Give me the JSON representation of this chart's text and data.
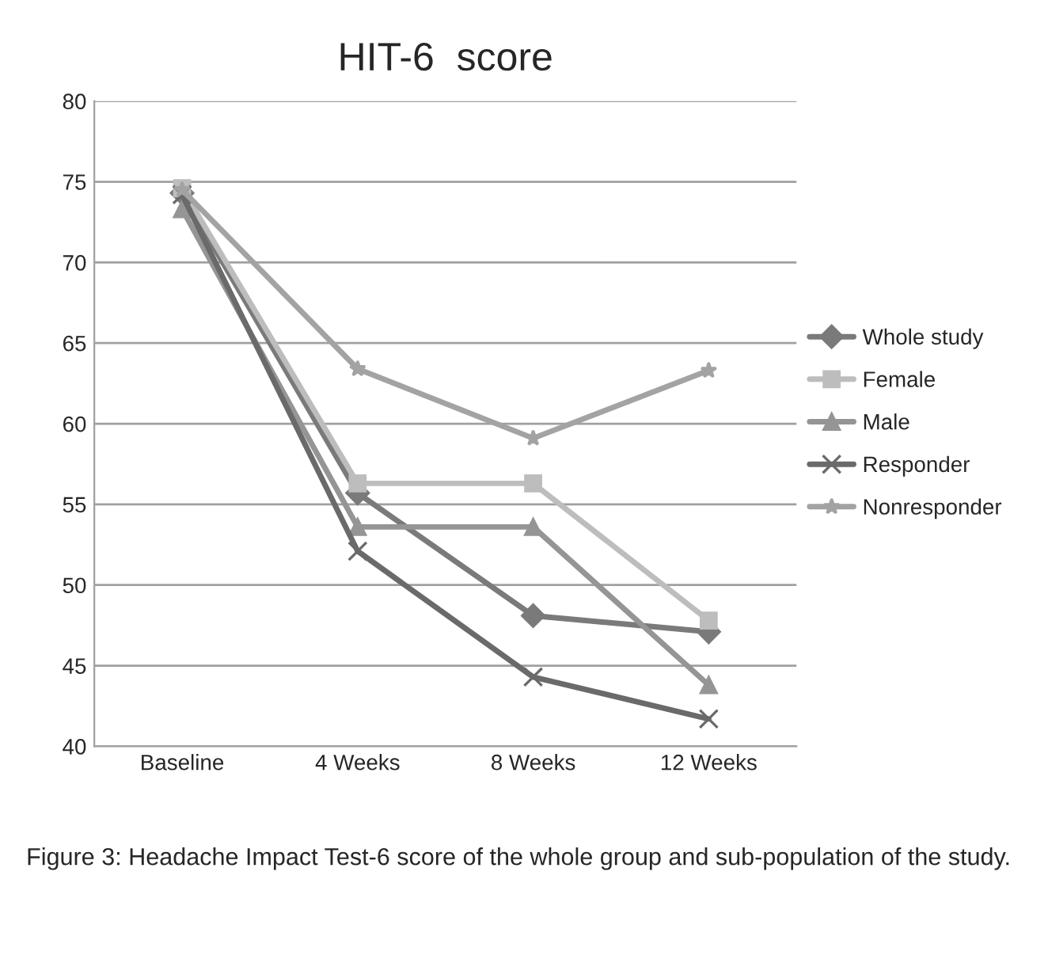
{
  "chart_data": {
    "type": "line",
    "title": "HIT-6  score",
    "categories": [
      "Baseline",
      "4 Weeks",
      "8 Weeks",
      "12 Weeks"
    ],
    "series": [
      {
        "name": "Whole study",
        "color": "#7a7a7a",
        "marker": "diamond",
        "values": [
          74.3,
          55.7,
          48.1,
          47.1
        ]
      },
      {
        "name": "Female",
        "color": "#bdbdbd",
        "marker": "square",
        "values": [
          74.6,
          56.3,
          56.3,
          47.8
        ]
      },
      {
        "name": "Male",
        "color": "#959595",
        "marker": "triangle",
        "values": [
          73.3,
          53.6,
          53.6,
          43.8
        ]
      },
      {
        "name": "Responder",
        "color": "#6a6a6a",
        "marker": "cross",
        "values": [
          74.2,
          52.1,
          44.3,
          41.7
        ]
      },
      {
        "name": "Nonresponder",
        "color": "#a3a3a3",
        "marker": "star",
        "values": [
          74.5,
          63.4,
          59.1,
          63.3
        ]
      }
    ],
    "ylim": [
      40,
      80
    ],
    "yticks": [
      40,
      45,
      50,
      55,
      60,
      65,
      70,
      75,
      80
    ],
    "grid": "y",
    "legend": "right",
    "annotations": [
      "Figure 3: Headache Impact Test-6 score of the whole group and sub-population of the study."
    ]
  }
}
